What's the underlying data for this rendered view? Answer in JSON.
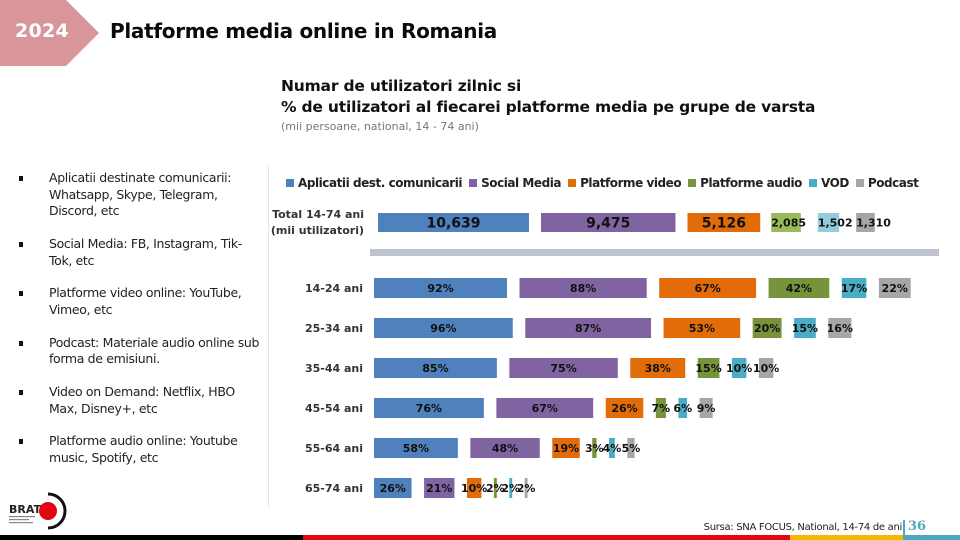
{
  "header": {
    "year": "2024",
    "title": "Platforme media online in Romania",
    "accent_color": "#d9969a"
  },
  "chart_header": {
    "title_line1": "Numar de utilizatori zilnic si",
    "title_line2": "% de utilizatori al fiecarei platforme media pe grupe de varsta",
    "subtitle": "(mii persoane, national, 14  - 74 ani)"
  },
  "sidebar": {
    "items": [
      {
        "text": "Aplicatii destinate comunicarii: Whatsapp, Skype, Telegram, Discord, etc"
      },
      {
        "text": "Social Media: FB, Instagram, Tik-Tok, etc"
      },
      {
        "text": "Platforme video online: YouTube, Vimeo, etc"
      },
      {
        "text": "Podcast: Materiale audio online sub forma de emisiuni."
      },
      {
        "text": "Video on Demand: Netflix, HBO Max, Disney+, etc"
      },
      {
        "text": "Platforme audio online: Youtube music, Spotify, etc"
      }
    ]
  },
  "chart_data": {
    "type": "bar",
    "orientation": "horizontal-segmented",
    "title": "Numar de utilizatori zilnic si % de utilizatori al fiecarei platforme media pe grupe de varsta",
    "subtitle": "(mii persoane, national, 14  - 74 ani)",
    "legend_position": "top",
    "series": [
      {
        "name": "Aplicatii dest. comunicarii",
        "color": "#4f81bd"
      },
      {
        "name": "Social Media",
        "color": "#8064a2"
      },
      {
        "name": "Platforme video",
        "color": "#e36c0a"
      },
      {
        "name": "Platforme audio",
        "color": "#77933c"
      },
      {
        "name": "VOD",
        "color": "#4bacc6"
      },
      {
        "name": "Podcast",
        "color": "#a6a6a6"
      }
    ],
    "total_row": {
      "label_line1": "Total 14-74 ani",
      "label_line2": "(mii utilizatori)",
      "values": [
        10639,
        9475,
        5126,
        2085,
        1502,
        1310
      ],
      "labels": [
        "10,639",
        "9,475",
        "5,126",
        "2,085",
        "1,502",
        "1,310"
      ],
      "colors": [
        "#4f81bd",
        "#8064a2",
        "#e36c0a",
        "#9bbb59",
        "#93cddd",
        "#a6a6a6"
      ]
    },
    "categories": [
      "14-24 ani",
      "25-34 ani",
      "35-44 ani",
      "45-54 ani",
      "55-64 ani",
      "65-74 ani"
    ],
    "values": [
      [
        92,
        88,
        67,
        42,
        17,
        22
      ],
      [
        96,
        87,
        53,
        20,
        15,
        16
      ],
      [
        85,
        75,
        38,
        15,
        10,
        10
      ],
      [
        76,
        67,
        26,
        7,
        6,
        9
      ],
      [
        58,
        48,
        19,
        3,
        4,
        5
      ],
      [
        26,
        21,
        10,
        2,
        2,
        2
      ]
    ],
    "unit": "%",
    "separator_color": "#bfc3d1"
  },
  "footer": {
    "source": "Sursa: SNA FOCUS, National, 14-74 de ani",
    "page_number": "36",
    "logo_text": "BRAT",
    "bar_colors": [
      "#000000",
      "#e30613",
      "#f6b800",
      "#4aa8c0"
    ]
  }
}
